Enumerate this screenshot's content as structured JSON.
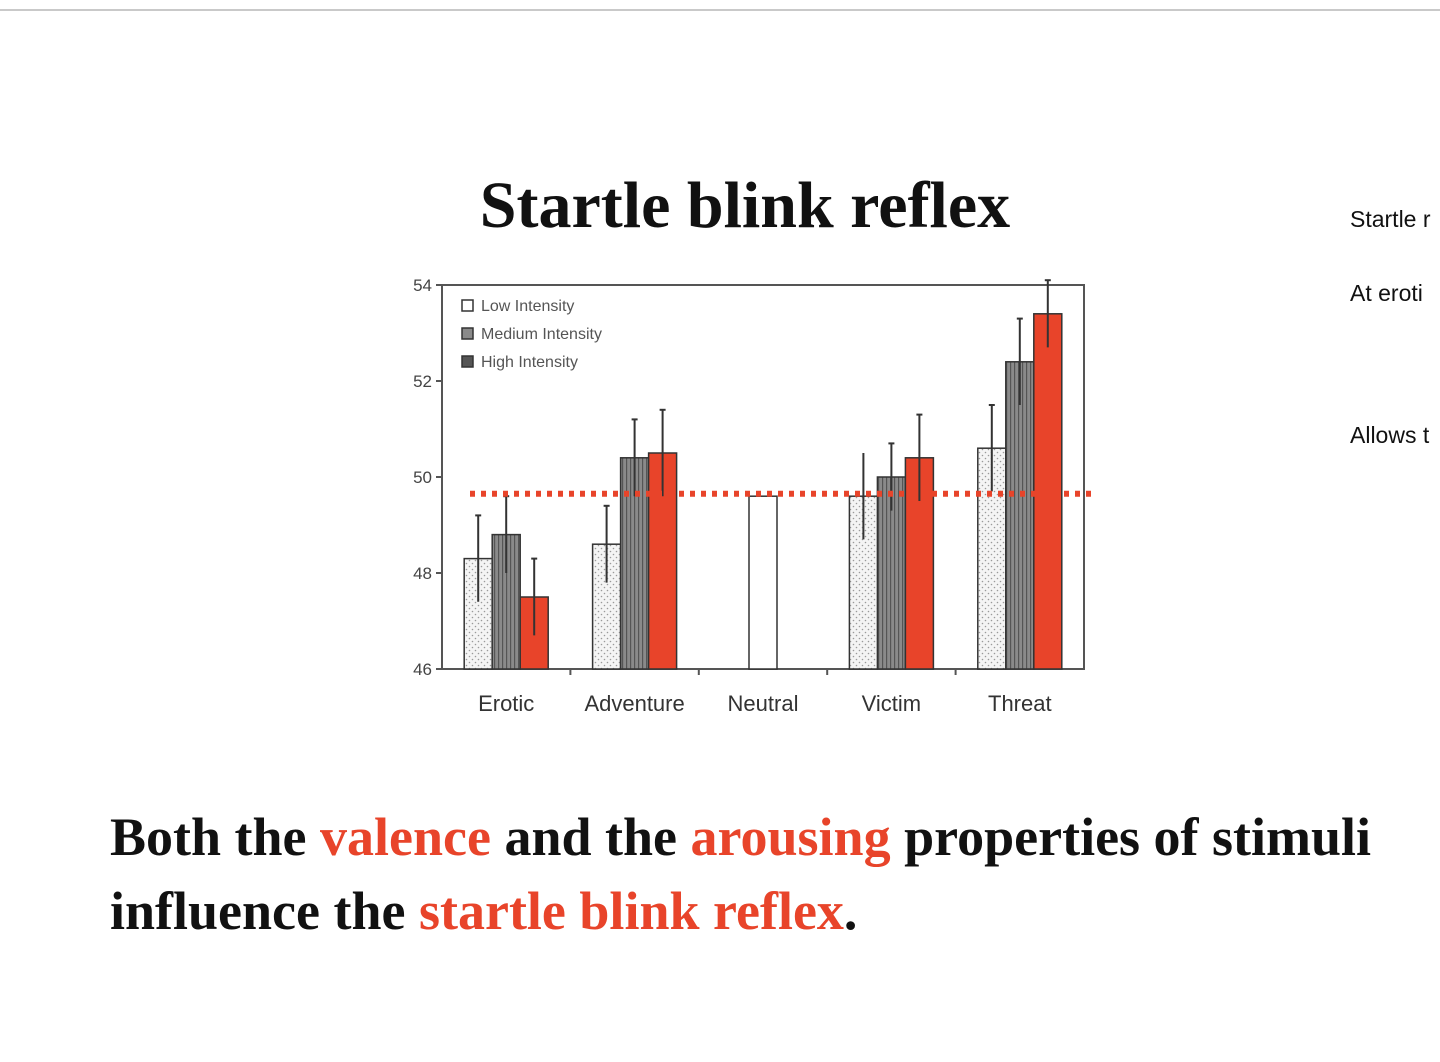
{
  "slide": {
    "title": "Startle blink reflex",
    "caption": {
      "p1": "Both the ",
      "h1": "valence",
      "p2": " and the ",
      "h2": "arousing",
      "p3": " properties of stimuli influence the ",
      "h3": "startle blink reflex",
      "p4": "."
    },
    "highlight_color": "#e8442a"
  },
  "notes": {
    "items": [
      "Startle r",
      "At eroti",
      "Allows t"
    ]
  },
  "chart_data": {
    "type": "bar",
    "categories": [
      "Erotic",
      "Adventure",
      "Neutral",
      "Victim",
      "Threat"
    ],
    "series": [
      {
        "name": "Low Intensity",
        "color": "#f4f4f4",
        "values": [
          48.3,
          48.6,
          null,
          null,
          50.6
        ],
        "errors": [
          0.9,
          0.8,
          null,
          null,
          0.9
        ]
      },
      {
        "name": "Medium Intensity",
        "color": "#8a8a8a",
        "values": [
          48.8,
          50.4,
          null,
          50.0,
          52.4
        ],
        "errors": [
          0.8,
          0.8,
          null,
          0.7,
          0.9
        ]
      },
      {
        "name": "High Intensity",
        "color": "#e8442a",
        "values": [
          47.5,
          50.5,
          null,
          50.4,
          53.4
        ],
        "errors": [
          0.8,
          0.9,
          null,
          0.9,
          0.7
        ]
      }
    ],
    "extra_bars": [
      {
        "category": "Neutral",
        "value": 49.6,
        "color": "#ffffff"
      },
      {
        "category": "Victim",
        "value": 49.6,
        "color": "#f4f4f4",
        "error": 0.9
      }
    ],
    "reference_line": {
      "value": 49.65,
      "style": "dotted",
      "color": "#e8442a"
    },
    "y_ticks": [
      46,
      48,
      50,
      52,
      54
    ],
    "ylim": [
      46,
      54
    ],
    "legend": {
      "placement": "top-left",
      "labels": [
        "Low Intensity",
        "Medium Intensity",
        "High Intensity"
      ]
    },
    "grid": false
  }
}
